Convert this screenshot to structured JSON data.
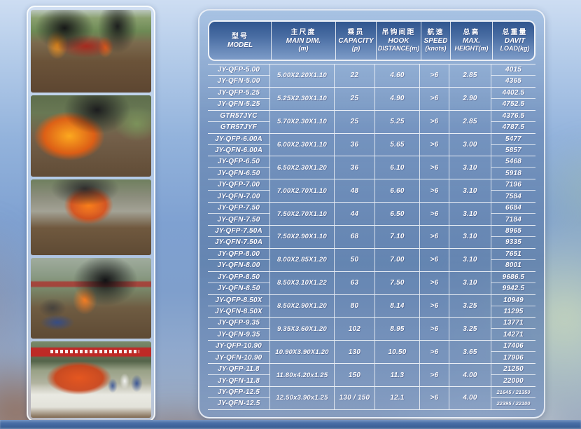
{
  "colors": {
    "panel_blue": "#6d8fbf",
    "header_dark_blue": "#31568f",
    "header_light_blue": "#7d9cc8",
    "table_line_white": "#ffffff",
    "text_white": "#ffffff",
    "bottom_bar_blue": "#35598f",
    "banner_red": "#c32624",
    "lifeboat_orange": "#e65a1e"
  },
  "photos": [
    {
      "desc": "fire test - burning red lifeboat hull on field with black smoke"
    },
    {
      "desc": "fire test - large orange fireball with heavy black smoke"
    },
    {
      "desc": "fire test - flames and smoke above capsized grey hull"
    },
    {
      "desc": "fire test - dense black smoke plume, crew in blue near shelter, red banner"
    },
    {
      "desc": "orange totally enclosed lifeboat on ground with crowd and red banner"
    }
  ],
  "table": {
    "columns": [
      {
        "key": "model",
        "zh": "型号",
        "en": "MODEL",
        "unit": ""
      },
      {
        "key": "main-dim",
        "zh": "主尺度",
        "en": "MAIN DIM.",
        "unit": "(m)"
      },
      {
        "key": "capacity",
        "zh": "乘员",
        "en": "CAPACITY",
        "unit": "(p)"
      },
      {
        "key": "hook-distance",
        "zh": "吊钩间距",
        "en": "HOOK",
        "unit": "DISTANCE(m)"
      },
      {
        "key": "speed",
        "zh": "航速",
        "en": "SPEED",
        "unit": "(knots)"
      },
      {
        "key": "max-height",
        "zh": "总高",
        "en": "MAX.",
        "unit": "HEIGHT(m)"
      },
      {
        "key": "davit-load",
        "zh": "总重量",
        "en": "DAVIT",
        "unit": "LOAD(kg)"
      }
    ],
    "rows": [
      {
        "models": [
          "JY-QFP-5.00",
          "JY-QFN-5.00"
        ],
        "dim": "5.00X2.20X1.10",
        "capacity": "22",
        "hook": "4.60",
        "speed": ">6",
        "height": "2.85",
        "loads": [
          "4015",
          "4365"
        ]
      },
      {
        "models": [
          "JY-QFP-5.25",
          "JY-QFN-5.25"
        ],
        "dim": "5.25X2.30X1.10",
        "capacity": "25",
        "hook": "4.90",
        "speed": ">6",
        "height": "2.90",
        "loads": [
          "4402.5",
          "4752.5"
        ]
      },
      {
        "models": [
          "GTR57JYC",
          "GTR57JYF"
        ],
        "dim": "5.70X2.30X1.10",
        "capacity": "25",
        "hook": "5.25",
        "speed": ">6",
        "height": "2.85",
        "loads": [
          "4376.5",
          "4787.5"
        ]
      },
      {
        "models": [
          "JY-QFP-6.00A",
          "JY-QFN-6.00A"
        ],
        "dim": "6.00X2.30X1.10",
        "capacity": "36",
        "hook": "5.65",
        "speed": ">6",
        "height": "3.00",
        "loads": [
          "5477",
          "5857"
        ]
      },
      {
        "models": [
          "JY-QFP-6.50",
          "JY-QFN-6.50"
        ],
        "dim": "6.50X2.30X1.20",
        "capacity": "36",
        "hook": "6.10",
        "speed": ">6",
        "height": "3.10",
        "loads": [
          "5468",
          "5918"
        ]
      },
      {
        "models": [
          "JY-QFP-7.00",
          "JY-QFN-7.00"
        ],
        "dim": "7.00X2.70X1.10",
        "capacity": "48",
        "hook": "6.60",
        "speed": ">6",
        "height": "3.10",
        "loads": [
          "7196",
          "7584"
        ]
      },
      {
        "models": [
          "JY-QFP-7.50",
          "JY-QFN-7.50"
        ],
        "dim": "7.50X2.70X1.10",
        "capacity": "44",
        "hook": "6.50",
        "speed": ">6",
        "height": "3.10",
        "loads": [
          "6684",
          "7184"
        ]
      },
      {
        "models": [
          "JY-QFP-7.50A",
          "JY-QFN-7.50A"
        ],
        "dim": "7.50X2.90X1.10",
        "capacity": "68",
        "hook": "7.10",
        "speed": ">6",
        "height": "3.10",
        "loads": [
          "8965",
          "9335"
        ]
      },
      {
        "models": [
          "JY-QFP-8.00",
          "JY-QFN-8.00"
        ],
        "dim": "8.00X2.85X1.20",
        "capacity": "50",
        "hook": "7.00",
        "speed": ">6",
        "height": "3.10",
        "loads": [
          "7651",
          "8001"
        ]
      },
      {
        "models": [
          "JY-QFP-8.50",
          "JY-QFN-8.50"
        ],
        "dim": "8.50X3.10X1.22",
        "capacity": "63",
        "hook": "7.50",
        "speed": ">6",
        "height": "3.10",
        "loads": [
          "9686.5",
          "9942.5"
        ]
      },
      {
        "models": [
          "JY-QFP-8.50X",
          "JY-QFN-8.50X"
        ],
        "dim": "8.50X2.90X1.20",
        "capacity": "80",
        "hook": "8.14",
        "speed": ">6",
        "height": "3.25",
        "loads": [
          "10949",
          "11295"
        ]
      },
      {
        "models": [
          "JY-QFP-9.35",
          "JY-QFN-9.35"
        ],
        "dim": "9.35X3.60X1.20",
        "capacity": "102",
        "hook": "8.95",
        "speed": ">6",
        "height": "3.25",
        "loads": [
          "13771",
          "14271"
        ]
      },
      {
        "models": [
          "JY-QFP-10.90",
          "JY-QFN-10.90"
        ],
        "dim": "10.90X3.90X1.20",
        "capacity": "130",
        "hook": "10.50",
        "speed": ">6",
        "height": "3.65",
        "loads": [
          "17406",
          "17906"
        ]
      },
      {
        "models": [
          "JY-QFP-11.8",
          "JY-QFN-11.8"
        ],
        "dim": "11.80x4.20x1.25",
        "capacity": "150",
        "hook": "11.3",
        "speed": ">6",
        "height": "4.00",
        "loads": [
          "21250",
          "22000"
        ]
      },
      {
        "models": [
          "JY-QFP-12.5",
          "JY-QFN-12.5"
        ],
        "dim": "12.50x3.90x1.25",
        "capacity": "130 / 150",
        "hook": "12.1",
        "speed": ">6",
        "height": "4.00",
        "loads": [
          "21645 / 21350",
          "22395 / 22100"
        ]
      }
    ]
  }
}
